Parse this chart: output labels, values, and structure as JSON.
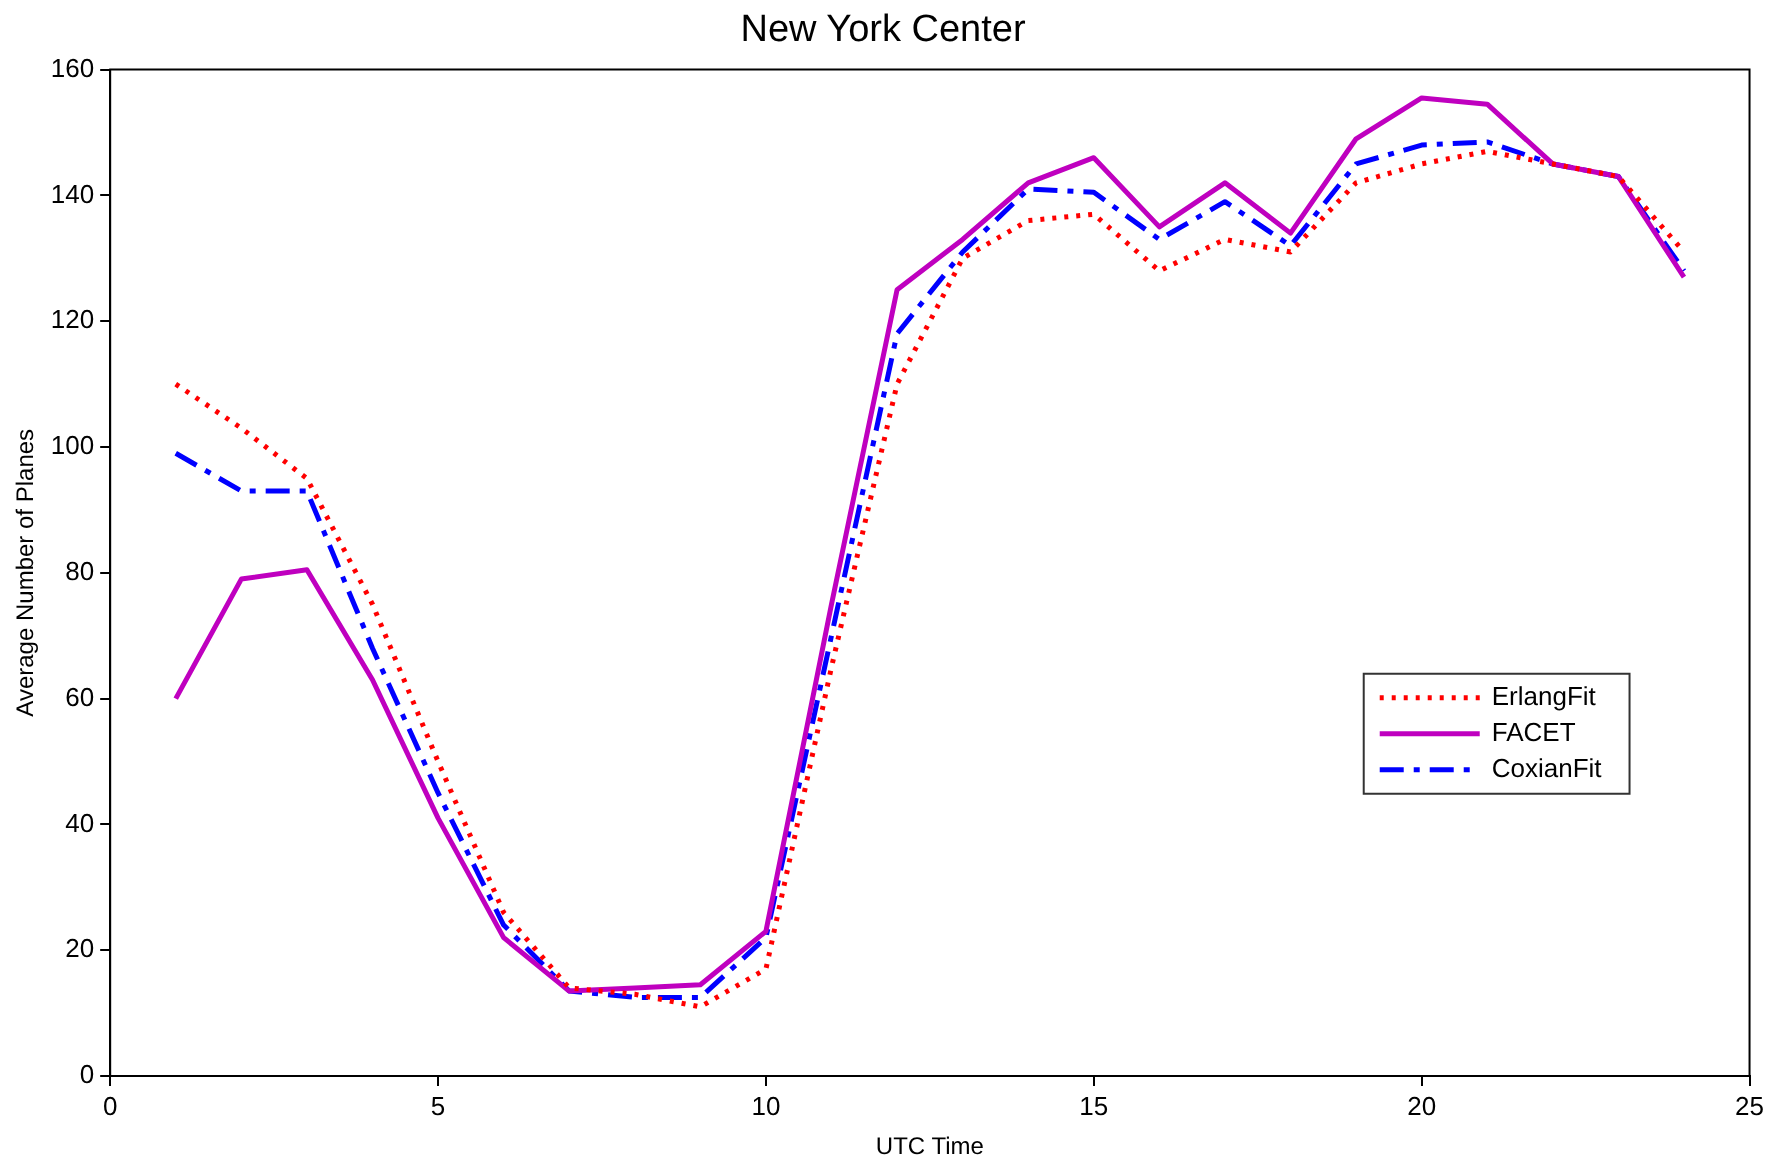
{
  "chart_data": {
    "type": "line",
    "title": "New York Center",
    "xlabel": "UTC Time",
    "ylabel": "Average Number of Planes",
    "x": [
      1,
      2,
      3,
      4,
      5,
      6,
      7,
      8,
      9,
      10,
      11,
      12,
      13,
      14,
      15,
      16,
      17,
      18,
      19,
      20,
      21,
      22,
      23,
      24
    ],
    "xlim": [
      0,
      25
    ],
    "xticks": [
      0,
      5,
      10,
      15,
      20,
      25
    ],
    "ylim": [
      0,
      160
    ],
    "yticks": [
      0,
      20,
      40,
      60,
      80,
      100,
      120,
      140,
      160
    ],
    "grid": false,
    "legend": "right",
    "marker": "none",
    "series": [
      {
        "name": "ErlangFit",
        "color": "#ff0000",
        "line_style": "dotted",
        "values": [
          110,
          103,
          95,
          75,
          50,
          26,
          14,
          13,
          11,
          17,
          65,
          110,
          130,
          136,
          137,
          128,
          133,
          131,
          142,
          145,
          147,
          145,
          143,
          131
        ]
      },
      {
        "name": "FACET",
        "color": "#bf00bf",
        "line_style": "solid",
        "values": [
          60,
          79,
          80.5,
          63,
          41,
          22,
          13.5,
          14,
          14.5,
          23,
          75,
          125,
          133,
          142,
          146,
          135,
          142,
          134,
          149,
          155.5,
          154.5,
          145,
          143,
          127
        ]
      },
      {
        "name": "CoxianFit",
        "color": "#0000ff",
        "line_style": "dashdot",
        "values": [
          99,
          93,
          93,
          68,
          45,
          24,
          13.5,
          12.5,
          12.5,
          22,
          70,
          118,
          131,
          141,
          140.5,
          133,
          139,
          132,
          145,
          148,
          148.5,
          145,
          143,
          128
        ]
      }
    ]
  }
}
